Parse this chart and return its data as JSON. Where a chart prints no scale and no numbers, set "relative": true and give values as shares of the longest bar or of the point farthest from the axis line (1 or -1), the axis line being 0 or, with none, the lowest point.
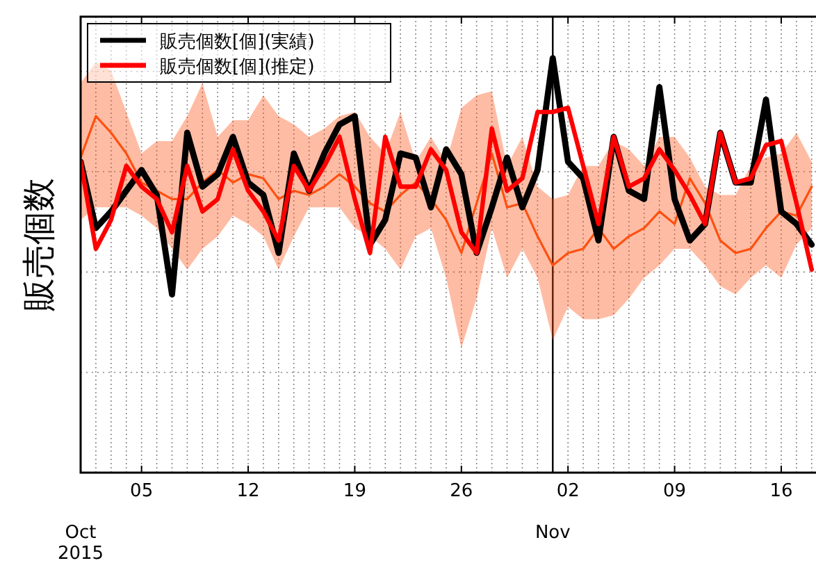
{
  "chart_data": {
    "type": "line",
    "ylabel": "販売個数",
    "relative": true,
    "grid": true,
    "legend": "top left",
    "x": [
      "2015-10-01",
      "2015-10-02",
      "2015-10-03",
      "2015-10-04",
      "2015-10-05",
      "2015-10-06",
      "2015-10-07",
      "2015-10-08",
      "2015-10-09",
      "2015-10-10",
      "2015-10-11",
      "2015-10-12",
      "2015-10-13",
      "2015-10-14",
      "2015-10-15",
      "2015-10-16",
      "2015-10-17",
      "2015-10-18",
      "2015-10-19",
      "2015-10-20",
      "2015-10-21",
      "2015-10-22",
      "2015-10-23",
      "2015-10-24",
      "2015-10-25",
      "2015-10-26",
      "2015-10-27",
      "2015-10-28",
      "2015-10-29",
      "2015-10-30",
      "2015-10-31",
      "2015-11-01",
      "2015-11-02",
      "2015-11-03",
      "2015-11-04",
      "2015-11-05",
      "2015-11-06",
      "2015-11-07",
      "2015-11-08",
      "2015-11-09",
      "2015-11-10",
      "2015-11-11",
      "2015-11-12",
      "2015-11-13",
      "2015-11-14",
      "2015-11-15",
      "2015-11-16",
      "2015-11-17",
      "2015-11-18"
    ],
    "xlim": [
      "2015-10-01",
      "2015-11-18T09:00"
    ],
    "x2lim": [
      "2015-10-01",
      "2015-11-18T09:00"
    ],
    "x2ticks": [
      {
        "value": "2015-10-01",
        "label": "Oct\n2015"
      },
      {
        "value": "2015-11-01",
        "label": "Nov"
      }
    ],
    "xticks": [
      {
        "value": "2015-10-05",
        "label": "05"
      },
      {
        "value": "2015-10-12",
        "label": "12"
      },
      {
        "value": "2015-10-19",
        "label": "19"
      },
      {
        "value": "2015-10-26",
        "label": "26"
      },
      {
        "value": "2015-11-02",
        "label": "02"
      },
      {
        "value": "2015-11-09",
        "label": "09"
      },
      {
        "value": "2015-11-16",
        "label": "16"
      }
    ],
    "ref_lines": [
      {
        "axis": "x",
        "value": "2015-11-01",
        "color": "#000000"
      }
    ],
    "series": [
      {
        "color": "#ff5010",
        "values": [
          0.76,
          0.86,
          0.82,
          0.77,
          0.7,
          0.68,
          0.66,
          0.66,
          0.7,
          0.73,
          0.7,
          0.72,
          0.71,
          0.66,
          0.68,
          0.67,
          0.69,
          0.72,
          0.69,
          0.65,
          0.63,
          0.67,
          0.7,
          0.66,
          0.61,
          0.53,
          0.65,
          0.77,
          0.64,
          0.65,
          0.57,
          0.5,
          0.53,
          0.54,
          0.59,
          0.54,
          0.57,
          0.59,
          0.63,
          0.6,
          0.71,
          0.65,
          0.56,
          0.53,
          0.54,
          0.59,
          0.63,
          0.62,
          0.69
        ],
        "upper": [
          0.94,
          0.99,
          0.97,
          0.87,
          0.77,
          0.8,
          0.8,
          0.86,
          0.94,
          0.81,
          0.85,
          0.85,
          0.91,
          0.86,
          0.84,
          0.81,
          0.83,
          0.86,
          0.87,
          0.81,
          0.77,
          0.87,
          0.75,
          0.81,
          0.75,
          0.88,
          0.91,
          0.92,
          0.74,
          0.81,
          0.69,
          0.66,
          0.67,
          0.74,
          0.74,
          0.8,
          0.78,
          0.74,
          0.81,
          0.81,
          0.76,
          0.69,
          0.67,
          0.67,
          0.74,
          0.76,
          0.77,
          0.82,
          0.75
        ],
        "lower": [
          0.61,
          0.64,
          0.64,
          0.64,
          0.62,
          0.59,
          0.54,
          0.49,
          0.54,
          0.57,
          0.62,
          0.6,
          0.57,
          0.49,
          0.57,
          0.64,
          0.64,
          0.64,
          0.59,
          0.57,
          0.54,
          0.49,
          0.57,
          0.59,
          0.47,
          0.3,
          0.42,
          0.59,
          0.47,
          0.54,
          0.47,
          0.32,
          0.4,
          0.37,
          0.37,
          0.38,
          0.42,
          0.47,
          0.5,
          0.54,
          0.54,
          0.5,
          0.45,
          0.43,
          0.47,
          0.5,
          0.47,
          0.55,
          0.59
        ]
      },
      {
        "name": "販売個数[個](実績)",
        "color": "#000000",
        "values": [
          0.75,
          0.59,
          0.63,
          0.68,
          0.73,
          0.67,
          0.43,
          0.82,
          0.69,
          0.72,
          0.81,
          0.7,
          0.67,
          0.53,
          0.77,
          0.68,
          0.77,
          0.84,
          0.86,
          0.55,
          0.61,
          0.77,
          0.76,
          0.64,
          0.78,
          0.72,
          0.53,
          0.64,
          0.76,
          0.64,
          0.73,
          1.0,
          0.75,
          0.71,
          0.56,
          0.81,
          0.68,
          0.66,
          0.93,
          0.66,
          0.56,
          0.6,
          0.82,
          0.7,
          0.7,
          0.9,
          0.63,
          0.6,
          0.55
        ]
      },
      {
        "name": "販売個数[個](推定)",
        "color": "#ff0000",
        "values": [
          0.75,
          0.54,
          0.61,
          0.74,
          0.69,
          0.66,
          0.58,
          0.74,
          0.63,
          0.66,
          0.78,
          0.68,
          0.63,
          0.56,
          0.74,
          0.68,
          0.74,
          0.81,
          0.66,
          0.53,
          0.81,
          0.69,
          0.69,
          0.78,
          0.73,
          0.58,
          0.53,
          0.83,
          0.68,
          0.71,
          0.87,
          0.87,
          0.88,
          0.74,
          0.6,
          0.81,
          0.69,
          0.71,
          0.78,
          0.73,
          0.67,
          0.6,
          0.82,
          0.7,
          0.71,
          0.79,
          0.8,
          0.65,
          0.49
        ]
      }
    ]
  }
}
